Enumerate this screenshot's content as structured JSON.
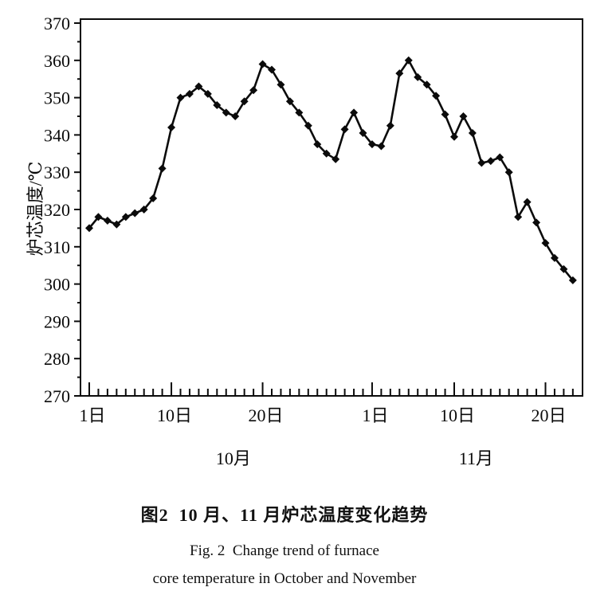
{
  "caption": {
    "zh": "图2  10 月、11 月炉芯温度变化趋势",
    "en_line1": "Fig. 2  Change trend of furnace",
    "en_line2": "core temperature in October and November"
  },
  "chart_data": {
    "type": "line",
    "title": "图2 10月、11月炉芯温度变化趋势 (Fig.2 Change trend of furnace core temperature in October and November)",
    "ylabel": "炉芯温度/℃",
    "xlabel": "",
    "ylim": [
      270,
      370
    ],
    "ytick_step": 10,
    "yminor_step": 5,
    "grid": false,
    "legend": "none",
    "line_color": "#0b0b0b",
    "marker": "diamond",
    "series_name": "炉芯温度",
    "x": [
      "10/1",
      "10/2",
      "10/3",
      "10/4",
      "10/5",
      "10/6",
      "10/7",
      "10/8",
      "10/9",
      "10/10",
      "10/11",
      "10/12",
      "10/13",
      "10/14",
      "10/15",
      "10/16",
      "10/17",
      "10/18",
      "10/19",
      "10/20",
      "10/21",
      "10/22",
      "10/23",
      "10/24",
      "10/25",
      "10/26",
      "10/27",
      "10/28",
      "10/29",
      "10/30",
      "10/31",
      "11/1",
      "11/2",
      "11/3",
      "11/4",
      "11/5",
      "11/6",
      "11/7",
      "11/8",
      "11/9",
      "11/10",
      "11/11",
      "11/12",
      "11/13",
      "11/14",
      "11/15",
      "11/16",
      "11/17",
      "11/18",
      "11/19",
      "11/20",
      "11/21",
      "11/22",
      "11/23"
    ],
    "values": [
      315,
      318,
      317,
      316,
      318,
      319,
      320,
      323,
      331,
      342,
      350,
      351,
      353,
      351,
      348,
      346,
      345,
      349,
      352,
      359,
      357.5,
      353.5,
      349,
      346,
      342.5,
      337.5,
      335,
      333.5,
      341.5,
      346,
      340.5,
      337.5,
      337,
      342.5,
      356.5,
      360,
      355.5,
      353.5,
      350.5,
      345.5,
      339.5,
      345,
      340.5,
      332.5,
      333,
      334,
      330,
      318,
      322,
      316.5,
      311,
      307,
      304,
      301
    ],
    "x_major_ticks": [
      {
        "label": "1日",
        "day": 1
      },
      {
        "label": "10日",
        "day": 10
      },
      {
        "label": "20日",
        "day": 20
      },
      {
        "label": "1日",
        "day": 32
      },
      {
        "label": "10日",
        "day": 41
      },
      {
        "label": "20日",
        "day": 51
      }
    ],
    "month_labels": [
      {
        "label": "10月",
        "day": 16.8
      },
      {
        "label": "11月",
        "day": 43.4
      }
    ],
    "ytick_labels": [
      "270",
      "280",
      "290",
      "300",
      "310",
      "320",
      "330",
      "340",
      "350",
      "360",
      "370"
    ]
  }
}
